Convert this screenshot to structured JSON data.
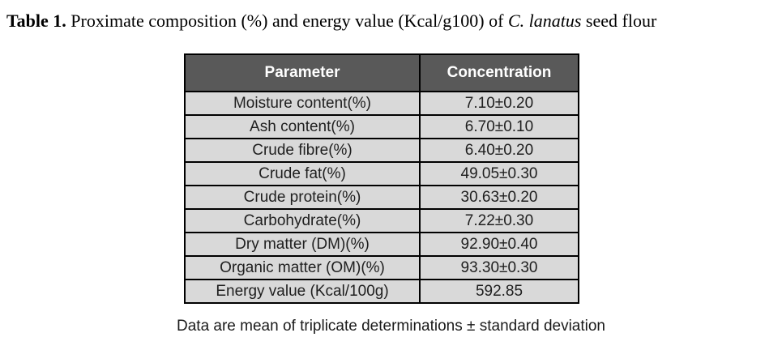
{
  "title": {
    "prefix": "Table 1.",
    "body": " Proximate composition (%) and energy value (Kcal/g100) of ",
    "species": "C. lanatus",
    "suffix": " seed flour"
  },
  "table": {
    "headers": {
      "parameter": "Parameter",
      "concentration": "Concentration"
    },
    "rows": [
      {
        "parameter": "Moisture content(%)",
        "concentration": "7.10±0.20"
      },
      {
        "parameter": "Ash content(%)",
        "concentration": "6.70±0.10"
      },
      {
        "parameter": "Crude fibre(%)",
        "concentration": "6.40±0.20"
      },
      {
        "parameter": "Crude fat(%)",
        "concentration": "49.05±0.30"
      },
      {
        "parameter": "Crude protein(%)",
        "concentration": "30.63±0.20"
      },
      {
        "parameter": "Carbohydrate(%)",
        "concentration": "7.22±0.30"
      },
      {
        "parameter": "Dry matter (DM)(%)",
        "concentration": "92.90±0.40"
      },
      {
        "parameter": "Organic matter (OM)(%)",
        "concentration": "93.30±0.30"
      },
      {
        "parameter": "Energy value (Kcal/100g)",
        "concentration": "592.85"
      }
    ]
  },
  "footnote": "Data are mean of triplicate determinations ± standard deviation",
  "colors": {
    "header_bg": "#595959",
    "header_text": "#ffffff",
    "row_bg": "#d9d9d9",
    "border": "#000000",
    "page_bg": "#ffffff"
  }
}
